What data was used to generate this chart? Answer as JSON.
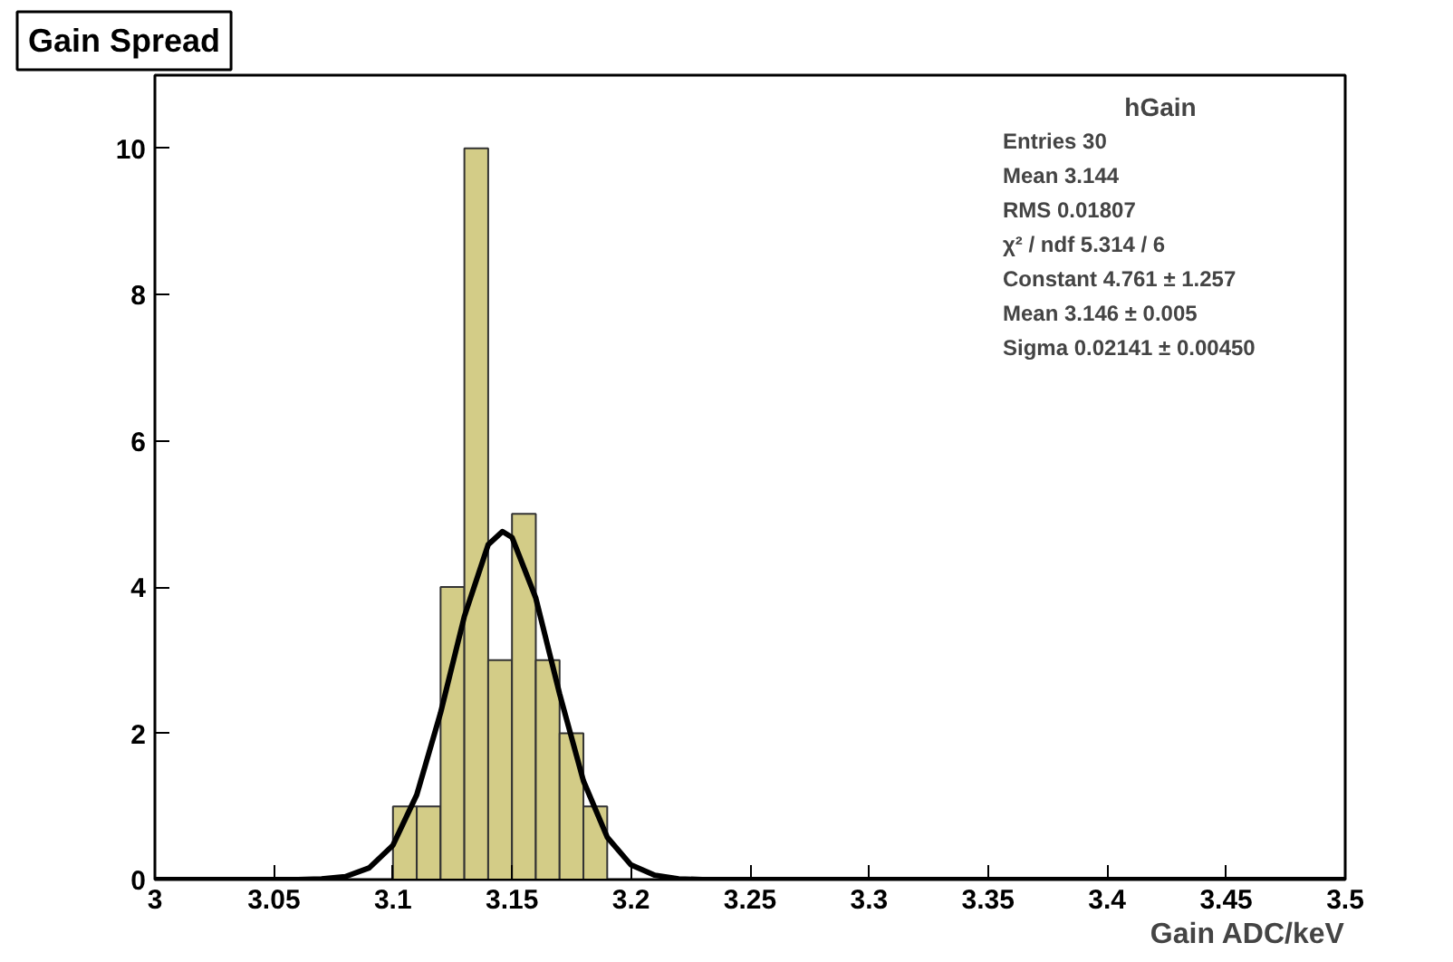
{
  "chart_data": {
    "type": "histogram",
    "title": "Gain Spread",
    "xlabel": "Gain ADC/keV",
    "bins": [
      3.1,
      3.11,
      3.12,
      3.13,
      3.14,
      3.15,
      3.16,
      3.17,
      3.18,
      3.19
    ],
    "values": [
      1,
      1,
      4,
      10,
      3,
      5,
      3,
      2,
      1
    ],
    "color": "#d3cc87",
    "series": [
      {
        "type": "line",
        "color": "#000000",
        "x": [
          3.0,
          3.05,
          3.06,
          3.07,
          3.08,
          3.09,
          3.1,
          3.11,
          3.12,
          3.13,
          3.14,
          3.146,
          3.15,
          3.16,
          3.17,
          3.18,
          3.19,
          3.2,
          3.21,
          3.22,
          3.23,
          3.25,
          3.5
        ],
        "values": [
          0,
          0,
          0.0,
          0.01,
          0.04,
          0.16,
          0.47,
          1.16,
          2.28,
          3.6,
          4.58,
          4.76,
          4.68,
          3.85,
          2.54,
          1.35,
          0.58,
          0.2,
          0.06,
          0.01,
          0.0,
          0,
          0
        ]
      }
    ],
    "xlim": [
      3,
      3.5
    ],
    "ylim": [
      0,
      11
    ],
    "xticks": [
      3,
      3.05,
      3.1,
      3.15,
      3.2,
      3.25,
      3.3,
      3.35,
      3.4,
      3.45,
      3.5
    ],
    "yticks": [
      0,
      2,
      4,
      6,
      8,
      10
    ],
    "grid": false,
    "annotations": [
      "hGain",
      "Entries 30",
      "Mean 3.144",
      "RMS 0.01807",
      "χ² / ndf 5.314 / 6",
      "Constant 4.761 ± 1.257",
      "Mean 3.146 ± 0.005",
      "Sigma 0.02141 ± 0.00450"
    ]
  }
}
